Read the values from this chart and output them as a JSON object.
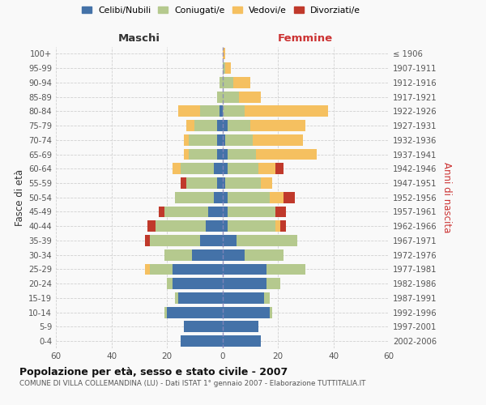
{
  "age_groups": [
    "0-4",
    "5-9",
    "10-14",
    "15-19",
    "20-24",
    "25-29",
    "30-34",
    "35-39",
    "40-44",
    "45-49",
    "50-54",
    "55-59",
    "60-64",
    "65-69",
    "70-74",
    "75-79",
    "80-84",
    "85-89",
    "90-94",
    "95-99",
    "100+"
  ],
  "birth_years": [
    "2002-2006",
    "1997-2001",
    "1992-1996",
    "1987-1991",
    "1982-1986",
    "1977-1981",
    "1972-1976",
    "1967-1971",
    "1962-1966",
    "1957-1961",
    "1952-1956",
    "1947-1951",
    "1942-1946",
    "1937-1941",
    "1932-1936",
    "1927-1931",
    "1922-1926",
    "1917-1921",
    "1912-1916",
    "1907-1911",
    "≤ 1906"
  ],
  "maschi": {
    "celibi": [
      15,
      14,
      20,
      16,
      18,
      18,
      11,
      8,
      6,
      5,
      3,
      2,
      3,
      2,
      2,
      2,
      1,
      0,
      0,
      0,
      0
    ],
    "coniugati": [
      0,
      0,
      1,
      1,
      2,
      8,
      10,
      18,
      18,
      16,
      14,
      11,
      12,
      10,
      10,
      8,
      7,
      2,
      1,
      0,
      0
    ],
    "vedovi": [
      0,
      0,
      0,
      0,
      0,
      2,
      0,
      0,
      0,
      0,
      0,
      0,
      3,
      2,
      2,
      3,
      8,
      0,
      0,
      0,
      0
    ],
    "divorziati": [
      0,
      0,
      0,
      0,
      0,
      0,
      0,
      2,
      3,
      2,
      0,
      2,
      0,
      0,
      0,
      0,
      0,
      0,
      0,
      0,
      0
    ]
  },
  "femmine": {
    "nubili": [
      14,
      13,
      17,
      15,
      16,
      16,
      8,
      5,
      2,
      2,
      2,
      1,
      2,
      2,
      1,
      2,
      0,
      0,
      0,
      0,
      0
    ],
    "coniugate": [
      0,
      0,
      1,
      2,
      5,
      14,
      14,
      22,
      17,
      17,
      15,
      13,
      11,
      10,
      10,
      8,
      8,
      6,
      4,
      1,
      0
    ],
    "vedove": [
      0,
      0,
      0,
      0,
      0,
      0,
      0,
      0,
      2,
      0,
      5,
      4,
      6,
      22,
      18,
      20,
      30,
      8,
      6,
      2,
      1
    ],
    "divorziate": [
      0,
      0,
      0,
      0,
      0,
      0,
      0,
      0,
      2,
      4,
      4,
      0,
      3,
      0,
      0,
      0,
      0,
      0,
      0,
      0,
      0
    ]
  },
  "colors": {
    "celibi_nubili": "#4472a8",
    "coniugati": "#b5c98e",
    "vedovi": "#f5c060",
    "divorziati": "#c0392b"
  },
  "xlim": 60,
  "title": "Popolazione per età, sesso e stato civile - 2007",
  "subtitle": "COMUNE DI VILLA COLLEMANDINA (LU) - Dati ISTAT 1° gennaio 2007 - Elaborazione TUTTITALIA.IT",
  "ylabel_left": "Fasce di età",
  "ylabel_right": "Anni di nascita",
  "legend_labels": [
    "Celibi/Nubili",
    "Coniugati/e",
    "Vedovi/e",
    "Divorziati/e"
  ],
  "background_color": "#f9f9f9",
  "grid_color": "#cccccc"
}
